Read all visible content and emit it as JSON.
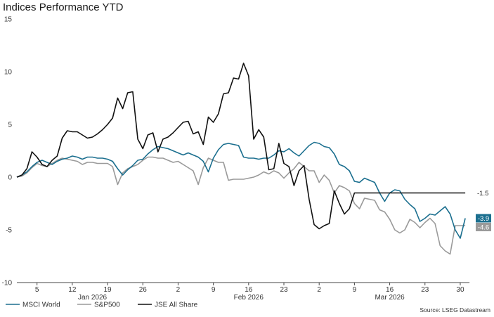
{
  "chart_data": {
    "type": "line",
    "title": "Indices Performance YTD",
    "source": "Source: LSEG Datastream",
    "ylim": [
      -10,
      15
    ],
    "yticks": [
      15,
      10,
      5,
      0,
      -5,
      -10
    ],
    "grid": false,
    "legend_position": "bottom-left",
    "day_ticks": [
      {
        "label": "5",
        "day": 5
      },
      {
        "label": "12",
        "day": 12
      },
      {
        "label": "19",
        "day": 19
      },
      {
        "label": "26",
        "day": 26
      },
      {
        "label": "2",
        "day": 33
      },
      {
        "label": "9",
        "day": 40
      },
      {
        "label": "16",
        "day": 47
      },
      {
        "label": "23",
        "day": 54
      },
      {
        "label": "2",
        "day": 61
      },
      {
        "label": "9",
        "day": 68
      },
      {
        "label": "16",
        "day": 75
      },
      {
        "label": "23",
        "day": 82
      },
      {
        "label": "30",
        "day": 89
      }
    ],
    "month_labels": [
      {
        "label": "Jan 2026",
        "day": 16
      },
      {
        "label": "Feb 2026",
        "day": 47
      },
      {
        "label": "Mar 2026",
        "day": 75
      }
    ],
    "x": [
      1,
      2,
      3,
      4,
      5,
      6,
      7,
      8,
      9,
      10,
      11,
      12,
      13,
      14,
      15,
      16,
      17,
      18,
      19,
      20,
      21,
      22,
      23,
      24,
      25,
      26,
      27,
      28,
      29,
      30,
      31,
      32,
      33,
      34,
      35,
      36,
      37,
      38,
      39,
      40,
      41,
      42,
      43,
      44,
      45,
      46,
      47,
      48,
      49,
      50,
      51,
      52,
      53,
      54,
      55,
      56,
      57,
      58,
      59,
      60,
      61,
      62,
      63,
      64,
      65,
      66,
      67,
      68,
      69,
      70,
      71,
      72,
      73,
      74,
      75,
      76,
      77,
      78,
      79,
      80,
      81,
      82,
      83,
      84,
      85,
      86,
      87,
      88,
      89,
      90
    ],
    "series": [
      {
        "name": "MSCI World",
        "color": "#1b6f8f",
        "end_label": "-3.9",
        "values": [
          0.0,
          0.2,
          0.5,
          1.0,
          1.4,
          1.6,
          1.4,
          1.2,
          1.5,
          1.7,
          1.8,
          2.0,
          1.9,
          1.7,
          1.9,
          1.9,
          1.8,
          1.8,
          1.7,
          1.5,
          0.8,
          0.2,
          0.7,
          1.1,
          1.6,
          1.7,
          2.2,
          2.6,
          2.9,
          2.8,
          2.7,
          2.5,
          2.3,
          2.1,
          2.3,
          2.1,
          1.9,
          1.5,
          0.5,
          1.8,
          2.6,
          3.1,
          3.2,
          3.1,
          3.0,
          1.9,
          1.8,
          1.8,
          1.7,
          1.8,
          1.8,
          2.1,
          2.5,
          2.4,
          2.7,
          2.3,
          2.0,
          2.5,
          3.0,
          3.3,
          3.2,
          2.9,
          2.8,
          2.2,
          1.2,
          1.0,
          0.6,
          -0.4,
          -0.5,
          -0.1,
          -0.3,
          -0.5,
          -1.5,
          -2.3,
          -1.5,
          -1.2,
          -1.3,
          -2.1,
          -2.6,
          -3.0,
          -4.2,
          -3.9,
          -3.5,
          -3.6,
          -3.2,
          -2.8,
          -3.5,
          -5.0,
          -5.8,
          -3.9
        ]
      },
      {
        "name": "S&P500",
        "color": "#9a9a9a",
        "end_label": "-4.6",
        "values": [
          0.0,
          0.1,
          0.4,
          0.9,
          1.3,
          1.1,
          1.0,
          1.3,
          1.6,
          1.8,
          1.7,
          1.6,
          1.5,
          1.2,
          1.4,
          1.4,
          1.3,
          1.3,
          1.3,
          1.0,
          -0.7,
          0.4,
          0.8,
          1.0,
          1.2,
          1.6,
          1.9,
          1.9,
          1.8,
          1.8,
          1.6,
          1.4,
          1.5,
          1.2,
          0.9,
          0.6,
          -0.7,
          0.9,
          1.8,
          1.6,
          1.4,
          1.4,
          -0.3,
          -0.2,
          -0.2,
          -0.2,
          -0.1,
          0.0,
          0.2,
          0.5,
          0.3,
          0.6,
          0.4,
          -0.1,
          0.4,
          0.8,
          1.4,
          1.0,
          0.6,
          0.6,
          -0.5,
          0.2,
          -0.3,
          -1.5,
          -0.8,
          -1.0,
          -1.3,
          -2.5,
          -3.0,
          -2.0,
          -2.1,
          -2.2,
          -3.1,
          -3.3,
          -4.0,
          -5.0,
          -5.3,
          -5.0,
          -4.0,
          -4.3,
          -4.8,
          -4.3,
          -3.9,
          -4.4,
          -6.5,
          -7.0,
          -7.3,
          -4.6,
          -4.6,
          -4.6
        ]
      },
      {
        "name": "JSE All Share",
        "color": "#111111",
        "end_label": "-1.5",
        "values": [
          0.0,
          0.2,
          0.8,
          2.4,
          1.9,
          1.2,
          1.0,
          1.6,
          2.0,
          3.7,
          4.4,
          4.3,
          4.3,
          4.0,
          3.7,
          3.8,
          4.1,
          4.5,
          5.0,
          5.6,
          7.5,
          6.5,
          8.0,
          8.1,
          3.6,
          2.7,
          4.0,
          4.2,
          2.4,
          3.6,
          3.8,
          4.2,
          4.7,
          5.2,
          5.3,
          4.1,
          4.3,
          3.1,
          5.7,
          5.2,
          6.0,
          7.9,
          8.0,
          9.4,
          9.3,
          10.8,
          9.6,
          3.6,
          4.5,
          3.8,
          0.7,
          0.8,
          3.2,
          1.3,
          1.0,
          -0.8,
          0.6,
          1.1,
          -2.1,
          -4.5,
          -4.9,
          -4.6,
          -4.4,
          -1.3,
          -2.5,
          -3.5,
          -3.0,
          -1.5,
          -1.5,
          -1.5,
          -1.5,
          -1.5,
          -1.5,
          -1.5,
          -1.5,
          -1.5,
          -1.5,
          -1.5,
          -1.5,
          -1.5,
          -1.5,
          -1.5,
          -1.5,
          -1.5,
          -1.5,
          -1.5,
          -1.5,
          -1.5,
          -1.5,
          -1.5
        ]
      }
    ]
  }
}
